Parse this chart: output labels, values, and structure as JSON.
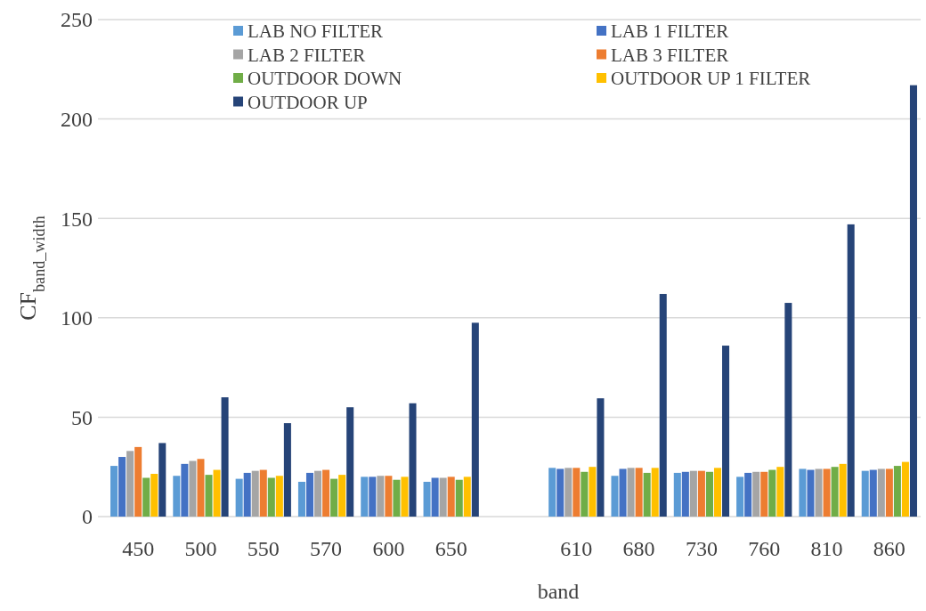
{
  "chart_data": {
    "type": "bar",
    "xlabel": "band",
    "ylabel": "CF$_{band_width}$",
    "categories": [
      "450",
      "500",
      "550",
      "570",
      "600",
      "650",
      null,
      "610",
      "680",
      "730",
      "760",
      "810",
      "860"
    ],
    "ylim": [
      0,
      250
    ],
    "yticks": [
      0,
      50,
      100,
      150,
      200,
      250
    ],
    "grid": "y",
    "legend": "top",
    "series": [
      {
        "name": "LAB NO FILTER",
        "color": "#5b9bd5",
        "values": [
          25.5,
          20.5,
          19,
          17.5,
          20,
          17.5,
          null,
          24.5,
          20.5,
          22,
          20,
          24,
          23
        ]
      },
      {
        "name": "LAB 1 FILTER",
        "color": "#4472c4",
        "values": [
          30,
          26.5,
          22,
          22,
          20,
          19.5,
          null,
          24,
          24,
          22.5,
          22,
          23.5,
          23.5
        ]
      },
      {
        "name": "LAB 2 FILTER",
        "color": "#a5a5a5",
        "values": [
          33,
          28,
          23,
          23,
          20.5,
          19.5,
          null,
          24.5,
          24.5,
          23,
          22.5,
          24,
          24
        ]
      },
      {
        "name": "LAB 3 FILTER",
        "color": "#ed7d31",
        "values": [
          35,
          29,
          23.5,
          23.5,
          20.5,
          20,
          null,
          24.5,
          24.5,
          23,
          22.5,
          24,
          24
        ]
      },
      {
        "name": "OUTDOOR DOWN",
        "color": "#70ad47",
        "values": [
          19.5,
          21,
          19.5,
          19,
          18.5,
          18.5,
          null,
          22.5,
          22,
          22.5,
          23.5,
          25,
          25.5
        ]
      },
      {
        "name": "OUTDOOR UP 1 FILTER",
        "color": "#ffc000",
        "values": [
          21.5,
          23.5,
          20.5,
          21,
          20,
          20,
          null,
          25,
          24.5,
          24.5,
          25,
          26.5,
          27.5
        ]
      },
      {
        "name": "OUTDOOR UP",
        "color": "#264478",
        "values": [
          37,
          60,
          47,
          55,
          57,
          97.5,
          null,
          59.5,
          112,
          86,
          107.5,
          147,
          217
        ]
      }
    ]
  }
}
